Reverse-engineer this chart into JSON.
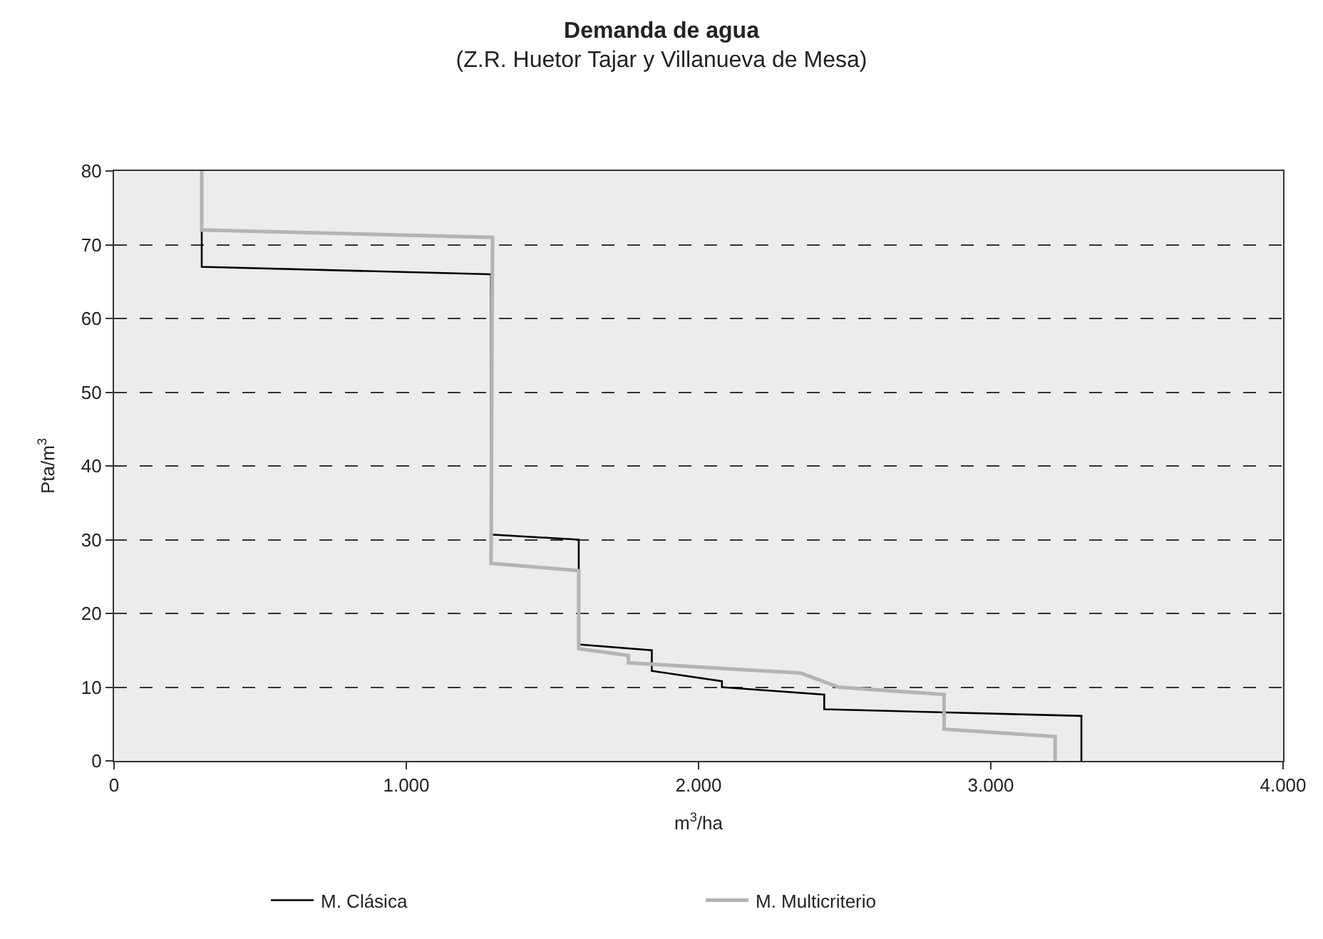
{
  "chart_data": {
    "type": "line",
    "title": "Demanda de agua",
    "subtitle": "(Z.R. Huetor Tajar y Villanueva de Mesa)",
    "xlabel": "m$^{3}$/ha",
    "ylabel": "Pta/m$^{3}$",
    "series": [
      {
        "name": "M. Clásica",
        "color": "#000000",
        "x": [
          300,
          300,
          1290,
          1290,
          1590,
          1590,
          1840,
          1840,
          2080,
          2080,
          2430,
          2430,
          3310,
          3310
        ],
        "values": [
          80,
          67,
          66,
          30.7,
          30,
          15.8,
          15,
          12.2,
          10.8,
          10,
          9,
          7,
          6.1,
          0
        ]
      },
      {
        "name": "M. Multicriterio",
        "color": "#b4b4b4",
        "x": [
          300,
          300,
          1295,
          1290,
          1590,
          1590,
          1760,
          1760,
          2350,
          2480,
          2840,
          2840,
          3220,
          3220
        ],
        "values": [
          80,
          72,
          71,
          26.8,
          25.8,
          15.2,
          14.3,
          13.3,
          11.9,
          10,
          9,
          4.3,
          3.3,
          0
        ]
      }
    ],
    "xlim": [
      0,
      4000
    ],
    "xticks": [
      0,
      {
        "value": 1000,
        "label": "1.000"
      },
      {
        "value": 2000,
        "label": "2.000"
      },
      {
        "value": 3000,
        "label": "3.000"
      },
      {
        "value": 4000,
        "label": "4.000"
      }
    ],
    "ylim": [
      0,
      80
    ],
    "yticks": [
      0,
      10,
      20,
      30,
      40,
      50,
      60,
      70,
      80
    ],
    "grid": "y",
    "legend": "bottom",
    "marker": "none",
    "line_style": "solid"
  }
}
